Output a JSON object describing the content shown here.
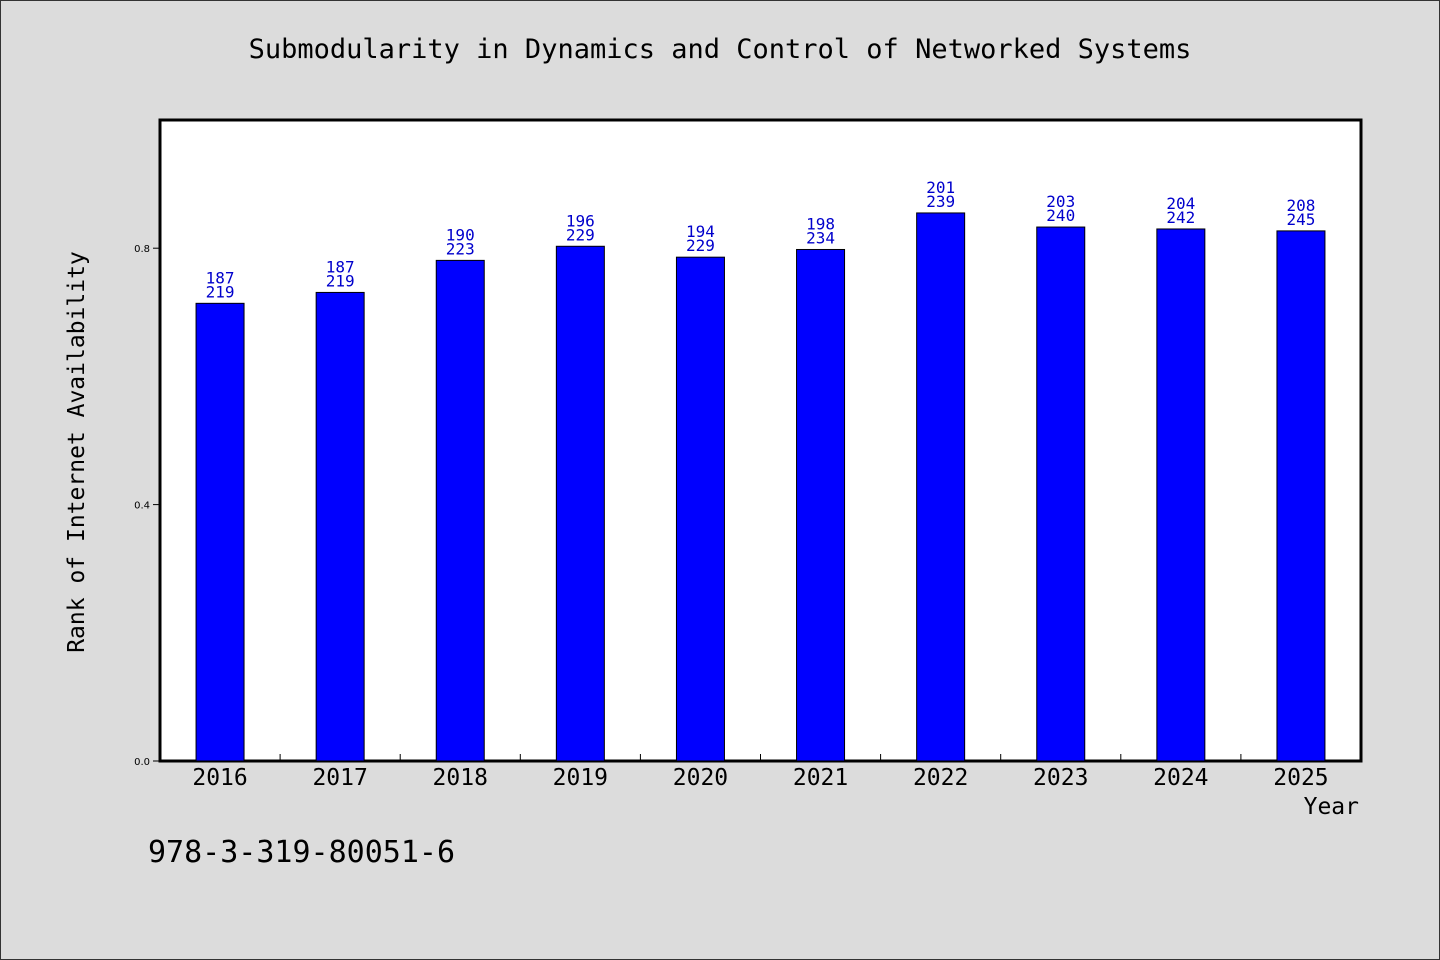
{
  "chart_data": {
    "type": "bar",
    "title": "Submodularity in Dynamics and Control of Networked Systems",
    "xlabel": "Year",
    "ylabel": "Rank of Internet Availability",
    "ylim": [
      0,
      1.0
    ],
    "yticks": [
      "0.0",
      "0.4",
      "0.8"
    ],
    "grid": false,
    "legend": "none",
    "categories": [
      "2016",
      "2017",
      "2018",
      "2019",
      "2020",
      "2021",
      "2022",
      "2023",
      "2024",
      "2025"
    ],
    "values": [
      0.714,
      0.731,
      0.781,
      0.803,
      0.786,
      0.798,
      0.855,
      0.833,
      0.83,
      0.827
    ],
    "label_top": [
      "187",
      "187",
      "190",
      "196",
      "194",
      "198",
      "201",
      "203",
      "204",
      "208"
    ],
    "label_bottom": [
      "219",
      "219",
      "223",
      "229",
      "229",
      "234",
      "239",
      "240",
      "242",
      "245"
    ],
    "bar_color": "#0000ff",
    "label_color": "#0000cc"
  },
  "footer_code": "978-3-319-80051-6"
}
